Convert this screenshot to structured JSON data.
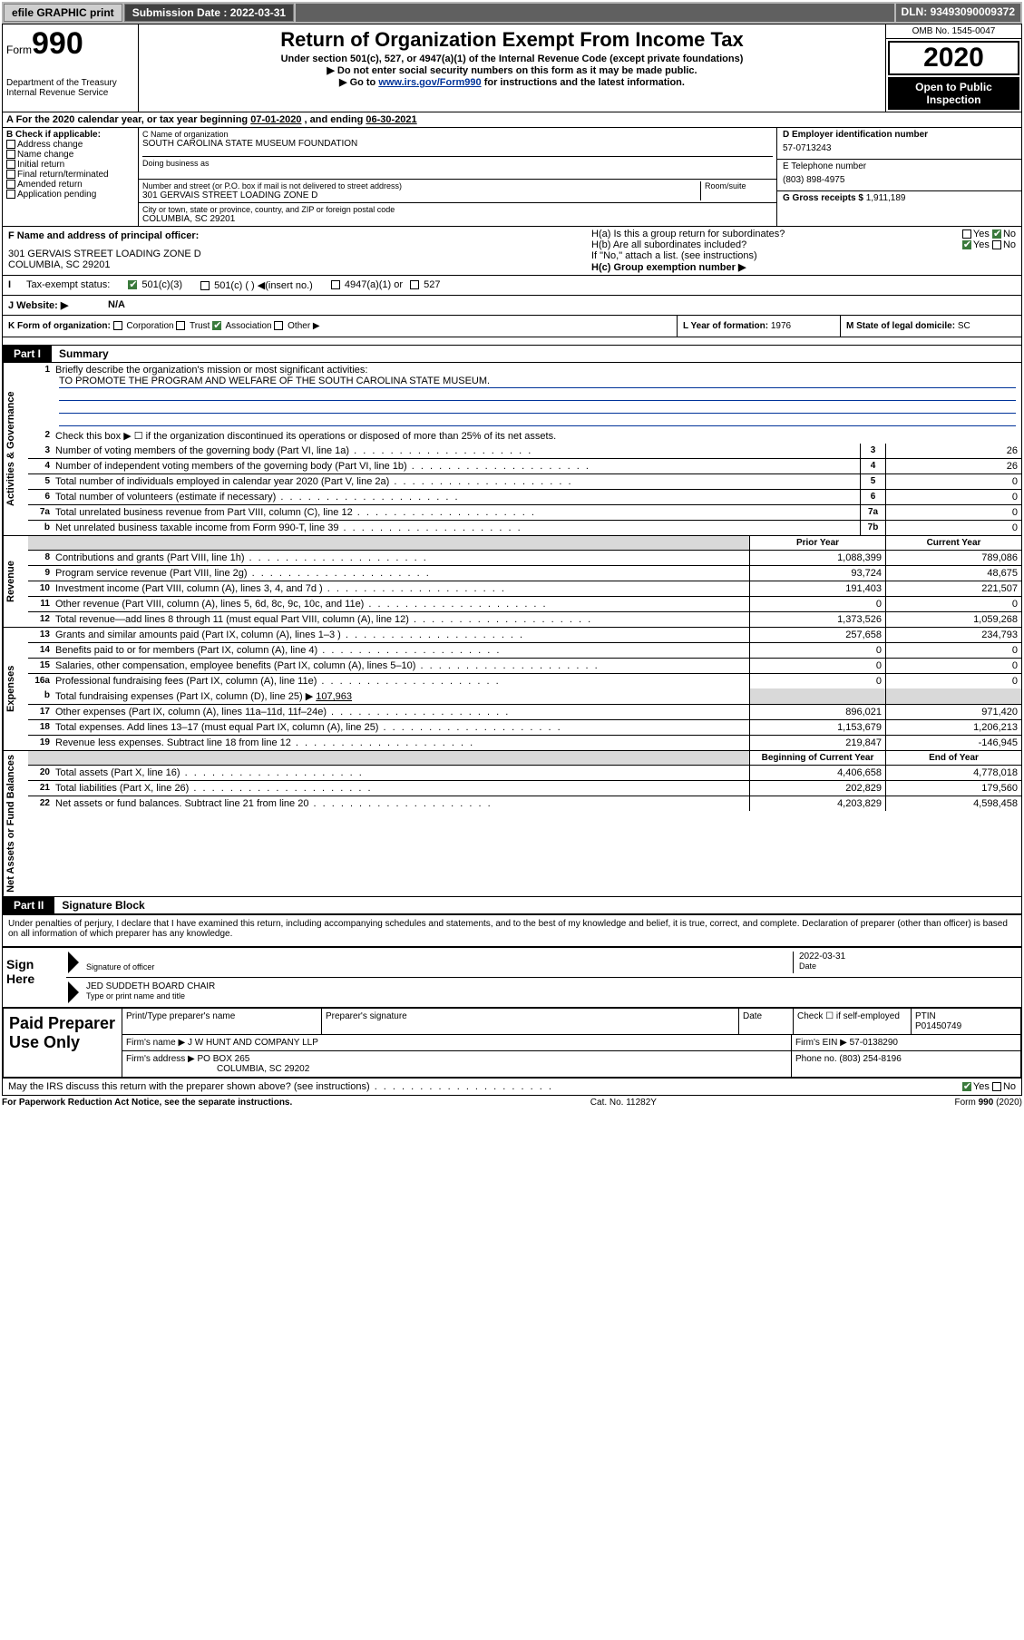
{
  "topbar": {
    "efile": "efile GRAPHIC print",
    "submission_label": "Submission Date :",
    "submission_date": "2022-03-31",
    "dln_label": "DLN:",
    "dln": "93493090009372"
  },
  "header": {
    "form_word": "Form",
    "form_num": "990",
    "dept1": "Department of the Treasury",
    "dept2": "Internal Revenue Service",
    "title": "Return of Organization Exempt From Income Tax",
    "sub1": "Under section 501(c), 527, or 4947(a)(1) of the Internal Revenue Code (except private foundations)",
    "sub2": "Do not enter social security numbers on this form as it may be made public.",
    "sub3_pre": "Go to ",
    "sub3_link": "www.irs.gov/Form990",
    "sub3_post": " for instructions and the latest information.",
    "omb": "OMB No. 1545-0047",
    "year": "2020",
    "open": "Open to Public Inspection"
  },
  "row_a": {
    "text_pre": "A For the 2020 calendar year, or tax year beginning ",
    "begin": "07-01-2020",
    "mid": "   , and ending ",
    "end": "06-30-2021"
  },
  "b": {
    "heading": "B Check if applicable:",
    "items": [
      "Address change",
      "Name change",
      "Initial return",
      "Final return/terminated",
      "Amended return",
      "Application pending"
    ]
  },
  "c": {
    "name_lbl": "C Name of organization",
    "name": "SOUTH CAROLINA STATE MUSEUM FOUNDATION",
    "dba_lbl": "Doing business as",
    "addr_lbl": "Number and street (or P.O. box if mail is not delivered to street address)",
    "room_lbl": "Room/suite",
    "addr": "301 GERVAIS STREET LOADING ZONE D",
    "city_lbl": "City or town, state or province, country, and ZIP or foreign postal code",
    "city": "COLUMBIA, SC  29201"
  },
  "d": {
    "lbl": "D Employer identification number",
    "val": "57-0713243",
    "tel_lbl": "E Telephone number",
    "tel": "(803) 898-4975",
    "gross_lbl": "G Gross receipts $",
    "gross": "1,911,189"
  },
  "f": {
    "lbl": "F  Name and address of principal officer:",
    "line1": "301 GERVAIS STREET LOADING ZONE D",
    "line2": "COLUMBIA, SC  29201"
  },
  "h": {
    "a_lbl": "H(a)  Is this a group return for subordinates?",
    "b_lbl": "H(b)  Are all subordinates included?",
    "b_note": "If \"No,\" attach a list. (see instructions)",
    "c_lbl": "H(c)  Group exemption number ▶",
    "yes": "Yes",
    "no": "No"
  },
  "tax": {
    "lbl": "Tax-exempt status:",
    "o1": "501(c)(3)",
    "o2": "501(c) (  ) ◀(insert no.)",
    "o3": "4947(a)(1) or",
    "o4": "527"
  },
  "j": {
    "lbl": "J   Website: ▶",
    "val": "N/A"
  },
  "k": {
    "lbl": "K Form of organization:",
    "o1": "Corporation",
    "o2": "Trust",
    "o3": "Association",
    "o4": "Other ▶",
    "l_lbl": "L Year of formation:",
    "l_val": "1976",
    "m_lbl": "M State of legal domicile:",
    "m_val": "SC"
  },
  "part1": {
    "tab": "Part I",
    "title": "Summary"
  },
  "side_labels": {
    "ag": "Activities & Governance",
    "rev": "Revenue",
    "exp": "Expenses",
    "net": "Net Assets or Fund Balances"
  },
  "s1": {
    "num": "1",
    "desc": "Briefly describe the organization's mission or most significant activities:",
    "mission": "TO PROMOTE THE PROGRAM AND WELFARE OF THE SOUTH CAROLINA STATE MUSEUM."
  },
  "s2": {
    "num": "2",
    "desc": "Check this box ▶ ☐  if the organization discontinued its operations or disposed of more than 25% of its net assets."
  },
  "lines_ag": [
    {
      "n": "3",
      "d": "Number of voting members of the governing body (Part VI, line 1a)",
      "m": "3",
      "v": "26"
    },
    {
      "n": "4",
      "d": "Number of independent voting members of the governing body (Part VI, line 1b)",
      "m": "4",
      "v": "26"
    },
    {
      "n": "5",
      "d": "Total number of individuals employed in calendar year 2020 (Part V, line 2a)",
      "m": "5",
      "v": "0"
    },
    {
      "n": "6",
      "d": "Total number of volunteers (estimate if necessary)",
      "m": "6",
      "v": "0"
    },
    {
      "n": "7a",
      "d": "Total unrelated business revenue from Part VIII, column (C), line 12",
      "m": "7a",
      "v": "0"
    },
    {
      "n": "b",
      "d": "Net unrelated business taxable income from Form 990-T, line 39",
      "m": "7b",
      "v": "0"
    }
  ],
  "col_headers": {
    "prior": "Prior Year",
    "current": "Current Year",
    "boy": "Beginning of Current Year",
    "eoy": "End of Year"
  },
  "lines_rev": [
    {
      "n": "8",
      "d": "Contributions and grants (Part VIII, line 1h)",
      "p": "1,088,399",
      "c": "789,086"
    },
    {
      "n": "9",
      "d": "Program service revenue (Part VIII, line 2g)",
      "p": "93,724",
      "c": "48,675"
    },
    {
      "n": "10",
      "d": "Investment income (Part VIII, column (A), lines 3, 4, and 7d )",
      "p": "191,403",
      "c": "221,507"
    },
    {
      "n": "11",
      "d": "Other revenue (Part VIII, column (A), lines 5, 6d, 8c, 9c, 10c, and 11e)",
      "p": "0",
      "c": "0"
    },
    {
      "n": "12",
      "d": "Total revenue—add lines 8 through 11 (must equal Part VIII, column (A), line 12)",
      "p": "1,373,526",
      "c": "1,059,268"
    }
  ],
  "lines_exp": [
    {
      "n": "13",
      "d": "Grants and similar amounts paid (Part IX, column (A), lines 1–3 )",
      "p": "257,658",
      "c": "234,793"
    },
    {
      "n": "14",
      "d": "Benefits paid to or for members (Part IX, column (A), line 4)",
      "p": "0",
      "c": "0"
    },
    {
      "n": "15",
      "d": "Salaries, other compensation, employee benefits (Part IX, column (A), lines 5–10)",
      "p": "0",
      "c": "0"
    },
    {
      "n": "16a",
      "d": "Professional fundraising fees (Part IX, column (A), line 11e)",
      "p": "0",
      "c": "0"
    }
  ],
  "line_16b": {
    "n": "b",
    "d": "Total fundraising expenses (Part IX, column (D), line 25) ▶",
    "v": "107,963"
  },
  "lines_exp2": [
    {
      "n": "17",
      "d": "Other expenses (Part IX, column (A), lines 11a–11d, 11f–24e)",
      "p": "896,021",
      "c": "971,420"
    },
    {
      "n": "18",
      "d": "Total expenses. Add lines 13–17 (must equal Part IX, column (A), line 25)",
      "p": "1,153,679",
      "c": "1,206,213"
    },
    {
      "n": "19",
      "d": "Revenue less expenses. Subtract line 18 from line 12",
      "p": "219,847",
      "c": "-146,945"
    }
  ],
  "lines_net": [
    {
      "n": "20",
      "d": "Total assets (Part X, line 16)",
      "p": "4,406,658",
      "c": "4,778,018"
    },
    {
      "n": "21",
      "d": "Total liabilities (Part X, line 26)",
      "p": "202,829",
      "c": "179,560"
    },
    {
      "n": "22",
      "d": "Net assets or fund balances. Subtract line 21 from line 20",
      "p": "4,203,829",
      "c": "4,598,458"
    }
  ],
  "part2": {
    "tab": "Part II",
    "title": "Signature Block"
  },
  "sig": {
    "perjury": "Under penalties of perjury, I declare that I have examined this return, including accompanying schedules and statements, and to the best of my knowledge and belief, it is true, correct, and complete. Declaration of preparer (other than officer) is based on all information of which preparer has any knowledge.",
    "here": "Sign Here",
    "sig_lbl": "Signature of officer",
    "date_lbl": "Date",
    "date": "2022-03-31",
    "name": "JED SUDDETH  BOARD CHAIR",
    "name_lbl": "Type or print name and title"
  },
  "prep": {
    "title": "Paid Preparer Use Only",
    "h1": "Print/Type preparer's name",
    "h2": "Preparer's signature",
    "h3": "Date",
    "h4_pre": "Check ☐ if self-employed",
    "h5_lbl": "PTIN",
    "h5": "P01450749",
    "firm_lbl": "Firm's name      ▶",
    "firm": "J W HUNT AND COMPANY LLP",
    "ein_lbl": "Firm's EIN ▶",
    "ein": "57-0138290",
    "addr_lbl": "Firm's address ▶",
    "addr1": "PO BOX 265",
    "addr2": "COLUMBIA, SC  29202",
    "phone_lbl": "Phone no.",
    "phone": "(803) 254-8196"
  },
  "discuss": {
    "q": "May the IRS discuss this return with the preparer shown above? (see instructions)",
    "yes": "Yes",
    "no": "No"
  },
  "footer": {
    "left": "For Paperwork Reduction Act Notice, see the separate instructions.",
    "mid": "Cat. No. 11282Y",
    "right": "Form 990 (2020)"
  }
}
